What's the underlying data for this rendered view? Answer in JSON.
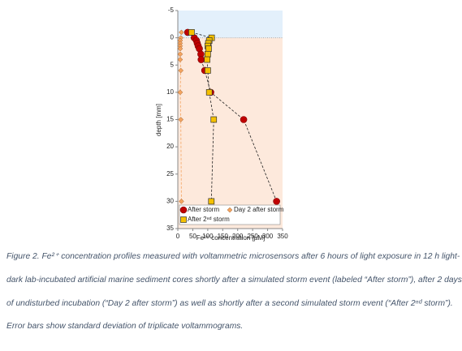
{
  "chart_data": {
    "type": "scatter",
    "x_label": "Fe²⁺ concentration [µM]",
    "y_label": "depth [mm]",
    "xlim": [
      0,
      350
    ],
    "xticks": [
      0,
      50,
      100,
      150,
      200,
      250,
      300,
      350
    ],
    "ylim": [
      -5,
      35
    ],
    "yticks": [
      -5,
      0,
      5,
      10,
      15,
      20,
      25,
      30,
      35
    ],
    "y_reversed": true,
    "regions": [
      {
        "from": -5,
        "to": 0,
        "color": "#e3f0fb"
      },
      {
        "from": 0,
        "to": 35,
        "color": "#fde9dc"
      }
    ],
    "line_style": "dashed",
    "series": [
      {
        "name": "After storm",
        "color": "#c00000",
        "marker": "circle",
        "x": [
          33,
          55,
          62,
          65,
          68,
          72,
          77,
          78,
          90,
          110,
          220,
          330
        ],
        "y": [
          -1,
          0,
          0.5,
          1,
          1.5,
          2,
          3,
          4,
          6,
          10,
          15,
          30
        ]
      },
      {
        "name": "Day 2 after storm",
        "color": "#f4a460",
        "marker": "diamond",
        "x": [
          12,
          10,
          8,
          8,
          8,
          8,
          8,
          8,
          10,
          8,
          10,
          12
        ],
        "y": [
          -1,
          0,
          0.5,
          1,
          1.5,
          2,
          3,
          4,
          6,
          10,
          15,
          30
        ]
      },
      {
        "name": "After 2ⁿᵈ storm",
        "color": "#f5c000",
        "marker": "square",
        "x": [
          46,
          113,
          105,
          102,
          100,
          103,
          100,
          98,
          100,
          105,
          120,
          112
        ],
        "y": [
          -1,
          0,
          0.5,
          1,
          1.5,
          2,
          3,
          4,
          6,
          10,
          15,
          30
        ]
      }
    ],
    "legend": "bottom"
  },
  "caption": [
    "Figure 2. Fe²⁺ concentration profiles measured with voltammetric microsensors after 6 hours of light exposure in 12 h light-",
    "dark lab-incubated artificial marine sediment cores shortly after a simulated storm event (labeled “After storm”), after 2 days",
    "of undisturbed incubation (“Day 2 after storm”) as well as shortly after a second simulated storm event (“After 2ⁿᵈ storm”).",
    "Error bars show standard deviation of triplicate voltammograms."
  ]
}
